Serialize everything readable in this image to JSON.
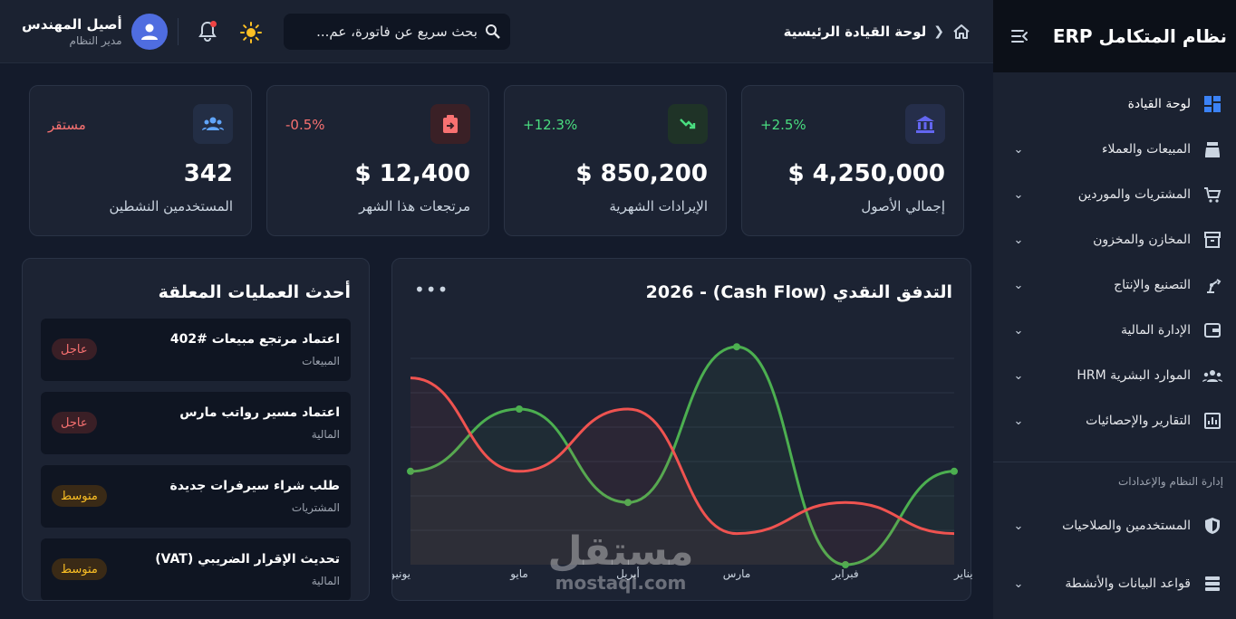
{
  "sidebar": {
    "title": "نظام المتكامل ERP",
    "items": [
      {
        "label": "لوحة القيادة",
        "icon": "dashboard-icon"
      },
      {
        "label": "المبيعات والعملاء",
        "icon": "cash-register-icon"
      },
      {
        "label": "المشتريات والموردين",
        "icon": "cart-icon"
      },
      {
        "label": "المخازن والمخزون",
        "icon": "archive-icon"
      },
      {
        "label": "التصنيع والإنتاج",
        "icon": "robot-arm-icon"
      },
      {
        "label": "الإدارة المالية",
        "icon": "wallet-icon"
      },
      {
        "label": "الموارد البشرية HRM",
        "icon": "people-icon"
      },
      {
        "label": "التقارير والإحصائيات",
        "icon": "report-icon"
      }
    ],
    "section_label": "إدارة النظام والإعدادات",
    "admin_items": [
      {
        "label": "المستخدمين والصلاحيات",
        "icon": "shield-icon"
      },
      {
        "label": "قواعد البيانات والأنشطة",
        "icon": "database-icon"
      }
    ]
  },
  "header": {
    "breadcrumb_title": "لوحة القيادة الرئيسية",
    "search_placeholder": "بحث سريع عن فاتورة، عم...",
    "user_name": "أصيل المهندس",
    "user_role": "مدير النظام"
  },
  "kpis": [
    {
      "label": "إجمالي الأصول",
      "value": "$ 4,250,000",
      "change": "2.5%+",
      "change_color": "#4ade80",
      "icon": "bank-icon",
      "icon_bg": "#252e4a",
      "icon_color": "#6366f1"
    },
    {
      "label": "الإيرادات الشهرية",
      "value": "$ 850,200",
      "change": "12.3%+",
      "change_color": "#4ade80",
      "icon": "trend-down-icon",
      "icon_bg": "#1f3327",
      "icon_color": "#4ade80"
    },
    {
      "label": "مرتجعات هذا الشهر",
      "value": "$ 12,400",
      "change": "0.5%-",
      "change_color": "#f87171",
      "icon": "clipboard-return-icon",
      "icon_bg": "#3a2026",
      "icon_color": "#f87171"
    },
    {
      "label": "المستخدمين النشطين",
      "value": "342",
      "change": "مستقر",
      "change_color": "#f87171",
      "icon": "users-icon",
      "icon_bg": "#232e45",
      "icon_color": "#60a5fa"
    }
  ],
  "chart_data": {
    "type": "line",
    "title": "التدفق النقدي (Cash Flow) - 2026",
    "categories": [
      "يناير",
      "فبراير",
      "مارس",
      "أبريل",
      "مايو",
      "يونيو"
    ],
    "series": [
      {
        "color": "#4caf50",
        "values": [
          30,
          0,
          70,
          20,
          50,
          30
        ]
      },
      {
        "color": "#ef5350",
        "values": [
          10,
          20,
          10,
          50,
          30,
          60
        ]
      }
    ],
    "ylim": [
      0,
      75
    ],
    "grid": true
  },
  "tasks_panel": {
    "title": "أحدث العمليات المعلقة",
    "items": [
      {
        "title": "اعتماد مرتجع مبيعات #402",
        "dept": "المبيعات",
        "priority": "عاجل",
        "level": "urgent"
      },
      {
        "title": "اعتماد مسير رواتب مارس",
        "dept": "المالية",
        "priority": "عاجل",
        "level": "urgent"
      },
      {
        "title": "طلب شراء سيرفرات جديدة",
        "dept": "المشتريات",
        "priority": "متوسط",
        "level": "medium"
      },
      {
        "title": "تحديث الإقرار الضريبي (VAT)",
        "dept": "المالية",
        "priority": "متوسط",
        "level": "medium"
      }
    ]
  },
  "watermark": {
    "arabic": "مستقل",
    "latin": "mostaql.com"
  }
}
